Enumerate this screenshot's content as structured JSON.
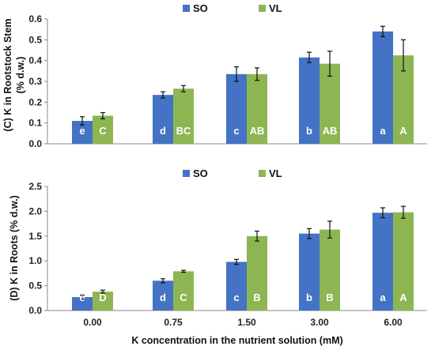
{
  "chart_data": [
    {
      "type": "bar",
      "ylabel_line1": "(C) K in Rootstock Stem",
      "ylabel_line2": "(% d.w.)",
      "xlabel": "",
      "categories": [
        "0.00",
        "0.75",
        "1.50",
        "3.00",
        "6.00"
      ],
      "ylim": [
        0,
        0.6
      ],
      "yticks": [
        "0.0",
        "0.1",
        "0.2",
        "0.3",
        "0.4",
        "0.5",
        "0.6"
      ],
      "legend": "top-center",
      "grid": false,
      "series": [
        {
          "name": "SO",
          "color": "#4472C4",
          "values": [
            0.11,
            0.235,
            0.335,
            0.415,
            0.54
          ],
          "errors": [
            0.02,
            0.015,
            0.035,
            0.025,
            0.025
          ],
          "labels": [
            "e",
            "d",
            "c",
            "b",
            "a"
          ]
        },
        {
          "name": "VL",
          "color": "#8DB653",
          "values": [
            0.135,
            0.265,
            0.335,
            0.385,
            0.425
          ],
          "errors": [
            0.015,
            0.015,
            0.03,
            0.06,
            0.075
          ],
          "labels": [
            "C",
            "BC",
            "AB",
            "AB",
            "A"
          ]
        }
      ]
    },
    {
      "type": "bar",
      "ylabel_line1": "(D) K in Roots (% d.w.)",
      "ylabel_line2": "",
      "xlabel": "K concentration in the nutrient solution (mM)",
      "categories": [
        "0.00",
        "0.75",
        "1.50",
        "3.00",
        "6.00"
      ],
      "ylim": [
        0,
        2.5
      ],
      "yticks": [
        "0.0",
        "0.5",
        "1.0",
        "1.5",
        "2.0",
        "2.5"
      ],
      "legend": "top-center",
      "grid": false,
      "series": [
        {
          "name": "SO",
          "color": "#4472C4",
          "values": [
            0.27,
            0.6,
            0.98,
            1.55,
            1.97
          ],
          "errors": [
            0.04,
            0.04,
            0.05,
            0.1,
            0.1
          ],
          "labels": [
            "e",
            "d",
            "c",
            "b",
            "a"
          ]
        },
        {
          "name": "VL",
          "color": "#8DB653",
          "values": [
            0.38,
            0.79,
            1.5,
            1.63,
            1.98
          ],
          "errors": [
            0.03,
            0.02,
            0.1,
            0.17,
            0.12
          ],
          "labels": [
            "D",
            "C",
            "B",
            "B",
            "A"
          ]
        }
      ]
    }
  ]
}
